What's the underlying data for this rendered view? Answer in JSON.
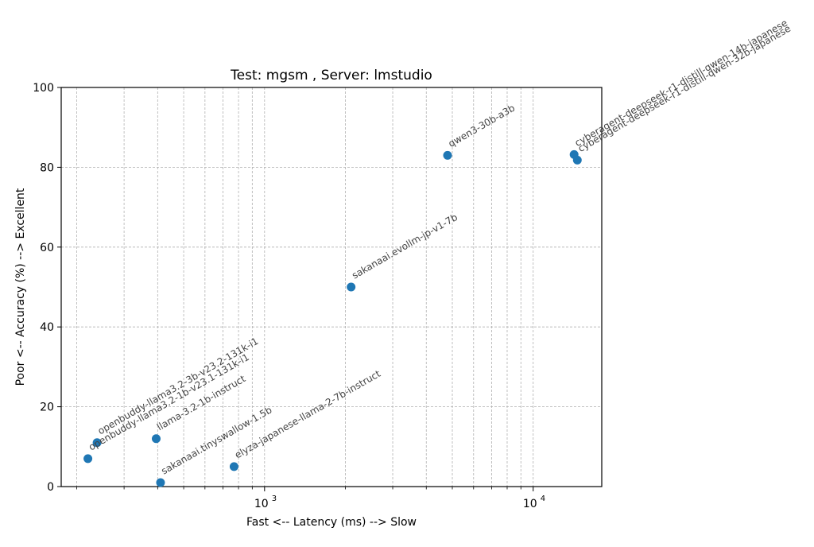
{
  "chart_data": {
    "type": "scatter",
    "title": "Test: mgsm , Server: lmstudio",
    "xlabel": "Fast <--  Latency (ms)  --> Slow",
    "ylabel": "Poor <--  Accuracy (%)  --> Excellent",
    "xscale": "log",
    "xlim": [
      175,
      18000
    ],
    "ylim": [
      0,
      100
    ],
    "grid": true,
    "marker_color": "#1f77b4",
    "x_tick_labels": [
      {
        "value": 1000,
        "base": "10",
        "exp": "3"
      },
      {
        "value": 10000,
        "base": "10",
        "exp": "4"
      }
    ],
    "y_tick_labels": [
      "0",
      "20",
      "40",
      "60",
      "80",
      "100"
    ],
    "points": [
      {
        "label": "openbuddy-llama3.2-1b-v23.1-131k-i1",
        "x": 220,
        "y": 7
      },
      {
        "label": "openbuddy-llama3.2-3b-v23.2-131k-i1",
        "x": 238,
        "y": 11
      },
      {
        "label": "llama-3.2-1b-instruct",
        "x": 395,
        "y": 12
      },
      {
        "label": "sakanaai.tinyswallow-1.5b",
        "x": 410,
        "y": 1
      },
      {
        "label": "elyza-japanese-llama-2-7b-instruct",
        "x": 770,
        "y": 5
      },
      {
        "label": "sakanaai.evollm-jp-v1-7b",
        "x": 2100,
        "y": 50
      },
      {
        "label": "qwen3-30b-a3b",
        "x": 4800,
        "y": 83
      },
      {
        "label": "cyberagent-deepseek-r1-distill-qwen-14b-japanese",
        "x": 14200,
        "y": 83.2
      },
      {
        "label": "cyberagent-deepseek-r1-distill-qwen-32b-japanese",
        "x": 14600,
        "y": 81.8
      }
    ]
  }
}
